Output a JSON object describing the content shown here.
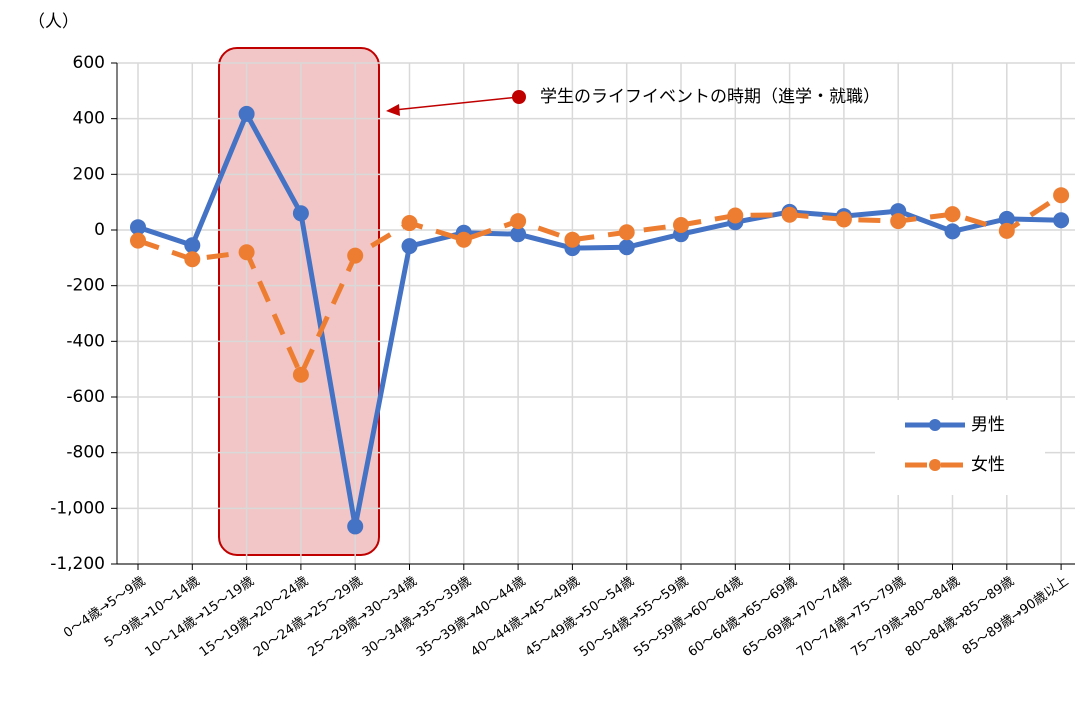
{
  "chart_data": {
    "type": "line",
    "y_label": "（人）",
    "annotation": "学生のライフイベントの時期（進学・就職）",
    "categories": [
      "0〜4歳→5〜9歳",
      "5〜9歳→10〜14歳",
      "10〜14歳→15〜19歳",
      "15〜19歳→20〜24歳",
      "20〜24歳→25〜29歳",
      "25〜29歳→30〜34歳",
      "30〜34歳→35〜39歳",
      "35〜39歳→40〜44歳",
      "40〜44歳→45〜49歳",
      "45〜49歳→50〜54歳",
      "50〜54歳→55〜59歳",
      "55〜59歳→60〜64歳",
      "60〜64歳→65〜69歳",
      "65〜69歳→70〜74歳",
      "70〜74歳→75〜79歳",
      "75〜79歳→80〜84歳",
      "80〜84歳→85〜89歳",
      "85〜89歳→90歳以上"
    ],
    "series": [
      {
        "name": "男性",
        "color": "#4472c4",
        "dashed": false,
        "values": [
          10,
          -55,
          417,
          60,
          -1065,
          -58,
          -10,
          -15,
          -65,
          -62,
          -15,
          28,
          65,
          50,
          68,
          -5,
          40,
          35
        ]
      },
      {
        "name": "女性",
        "color": "#ed7d31",
        "dashed": true,
        "values": [
          -38,
          -105,
          -80,
          -520,
          -92,
          25,
          -35,
          32,
          -35,
          -8,
          18,
          52,
          55,
          38,
          32,
          57,
          -3,
          125
        ]
      }
    ],
    "ylim": [
      -1200,
      600
    ],
    "yticks": [
      {
        "value": -1200,
        "label": "-1,200"
      },
      {
        "value": -1000,
        "label": "-1,000"
      },
      -800,
      -600,
      -400,
      -200,
      0,
      200,
      400,
      600
    ],
    "grid": true,
    "legend": "lower right"
  }
}
